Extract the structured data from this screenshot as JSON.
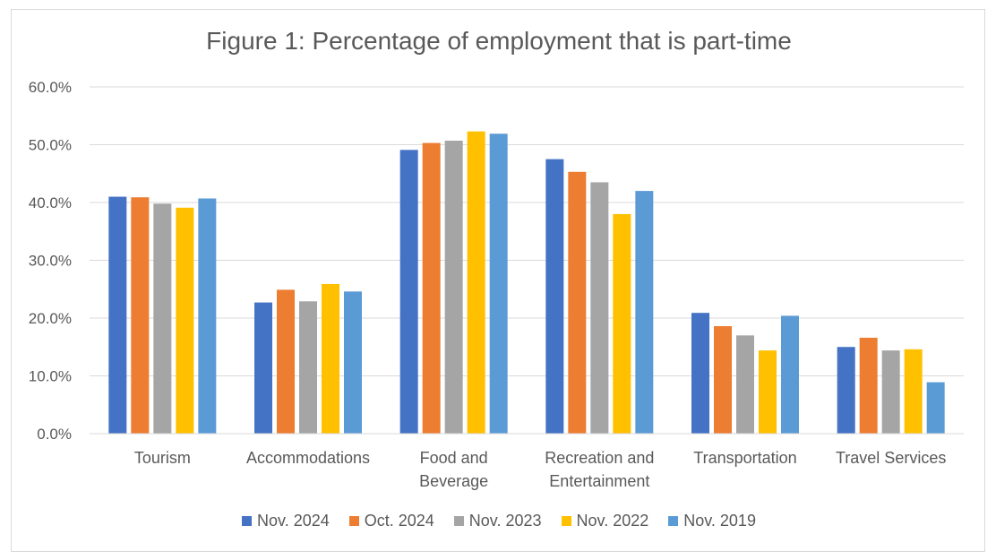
{
  "chart_data": {
    "type": "bar",
    "title": "Figure 1: Percentage of employment that is part-time",
    "categories": [
      "Tourism",
      "Accommodations",
      "Food and Beverage",
      "Recreation and Entertainment",
      "Transportation",
      "Travel Services"
    ],
    "category_lines": [
      [
        "Tourism"
      ],
      [
        "Accommodations"
      ],
      [
        "Food and",
        "Beverage"
      ],
      [
        "Recreation and",
        "Entertainment"
      ],
      [
        "Transportation"
      ],
      [
        "Travel Services"
      ]
    ],
    "series": [
      {
        "name": "Nov. 2024",
        "color": "#4472c4",
        "values": [
          41.0,
          22.7,
          49.1,
          47.5,
          20.9,
          15.0
        ]
      },
      {
        "name": "Oct. 2024",
        "color": "#ed7d31",
        "values": [
          40.9,
          24.9,
          50.3,
          45.3,
          18.6,
          16.6
        ]
      },
      {
        "name": "Nov. 2023",
        "color": "#a5a5a5",
        "values": [
          39.8,
          22.9,
          50.7,
          43.5,
          17.0,
          14.4
        ]
      },
      {
        "name": "Nov. 2022",
        "color": "#ffc000",
        "values": [
          39.1,
          25.9,
          52.3,
          38.0,
          14.4,
          14.6
        ]
      },
      {
        "name": "Nov. 2019",
        "color": "#5b9bd5",
        "values": [
          40.7,
          24.6,
          51.9,
          42.0,
          20.4,
          8.9
        ]
      }
    ],
    "ylim": [
      0,
      60
    ],
    "yticks": [
      0,
      10,
      20,
      30,
      40,
      50,
      60
    ],
    "ytick_labels": [
      "0.0%",
      "10.0%",
      "20.0%",
      "30.0%",
      "40.0%",
      "50.0%",
      "60.0%"
    ],
    "xlabel": "",
    "ylabel": "",
    "grid": true,
    "legend_position": "bottom"
  }
}
